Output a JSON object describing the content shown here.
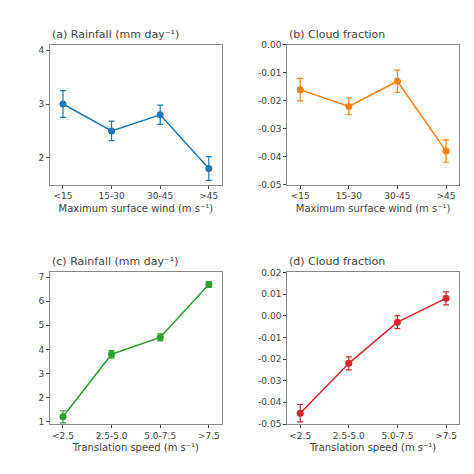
{
  "chart_data": [
    {
      "type": "line",
      "title": "(a) Rainfall (mm day⁻¹)",
      "xlabel": "Maximum surface wind (m s⁻¹)",
      "categories": [
        "<15",
        "15-30",
        "30-45",
        ">45"
      ],
      "values": [
        3.0,
        2.5,
        2.8,
        1.8
      ],
      "errors": [
        0.25,
        0.18,
        0.18,
        0.22
      ],
      "ylim": [
        1.5,
        4.1
      ],
      "yticks": [
        2,
        3,
        4
      ],
      "grid": false,
      "marker": "circle"
    },
    {
      "type": "line",
      "title": "(b) Cloud fraction",
      "xlabel": "Maximum surface wind (m s⁻¹)",
      "categories": [
        "<15",
        "15-30",
        "30-45",
        ">45"
      ],
      "values": [
        -0.016,
        -0.022,
        -0.013,
        -0.038
      ],
      "errors": [
        0.004,
        0.003,
        0.004,
        0.004
      ],
      "ylim": [
        -0.05,
        0.0
      ],
      "yticks": [
        -0.05,
        -0.04,
        -0.03,
        -0.02,
        -0.01,
        {
          "value": 0,
          "label": "0.00"
        }
      ],
      "grid": false,
      "marker": "circle"
    },
    {
      "type": "line",
      "title": "(c) Rainfall (mm day⁻¹)",
      "xlabel": "Translation speed (m s⁻¹)",
      "categories": [
        "<2.5",
        "2.5-5.0",
        "5.0-7.5",
        ">7.5"
      ],
      "values": [
        1.2,
        3.8,
        4.5,
        6.7
      ],
      "errors": [
        0.25,
        0.15,
        0.15,
        0.12
      ],
      "ylim": [
        0.9,
        7.2
      ],
      "yticks": [
        1,
        2,
        3,
        4,
        5,
        6,
        7
      ],
      "grid": false,
      "marker": "circle"
    },
    {
      "type": "line",
      "title": "(d) Cloud fraction",
      "xlabel": "Translation speed (m s⁻¹)",
      "categories": [
        "<2.5",
        "2.5-5.0",
        "5.0-7.5",
        ">7.5"
      ],
      "values": [
        -0.045,
        -0.022,
        -0.003,
        0.008
      ],
      "errors": [
        0.004,
        0.003,
        0.003,
        0.003
      ],
      "ylim": [
        -0.05,
        0.02
      ],
      "yticks": [
        -0.05,
        -0.04,
        -0.03,
        -0.02,
        -0.01,
        {
          "value": 0,
          "label": "0.00"
        },
        0.01,
        0.02
      ],
      "grid": false,
      "marker": "circle"
    }
  ]
}
